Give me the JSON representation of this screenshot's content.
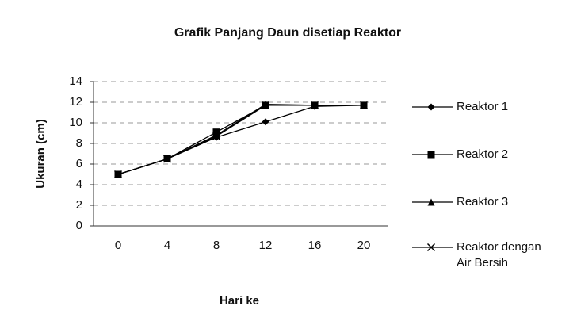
{
  "chart_data": {
    "type": "line",
    "title": "Grafik Panjang Daun disetiap Reaktor",
    "x_label": "Hari ke",
    "y_label": "Ukuran (cm)",
    "categories": [
      "0",
      "4",
      "8",
      "12",
      "16",
      "20"
    ],
    "series": [
      {
        "name": "Reaktor 1",
        "color": "#000000",
        "marker": "diamond",
        "values": [
          5,
          6.5,
          8.6,
          10.1,
          11.6,
          11.7
        ]
      },
      {
        "name": "Reaktor 2",
        "color": "#000000",
        "marker": "square",
        "values": [
          5,
          6.5,
          9.1,
          11.7,
          11.7,
          11.7
        ]
      },
      {
        "name": "Reaktor 3",
        "color": "#000000",
        "marker": "triangle",
        "values": [
          5,
          6.5,
          8.8,
          11.8,
          11.7,
          11.7
        ]
      },
      {
        "name": "Reaktor dengan Air Bersih",
        "color": "#000000",
        "marker": "x",
        "values": [
          5,
          6.5,
          8.7,
          11.7,
          11.7,
          11.7
        ]
      }
    ],
    "ylim": [
      0,
      14
    ],
    "yticks": [
      0,
      2,
      4,
      6,
      8,
      10,
      12,
      14
    ],
    "grid": true
  }
}
